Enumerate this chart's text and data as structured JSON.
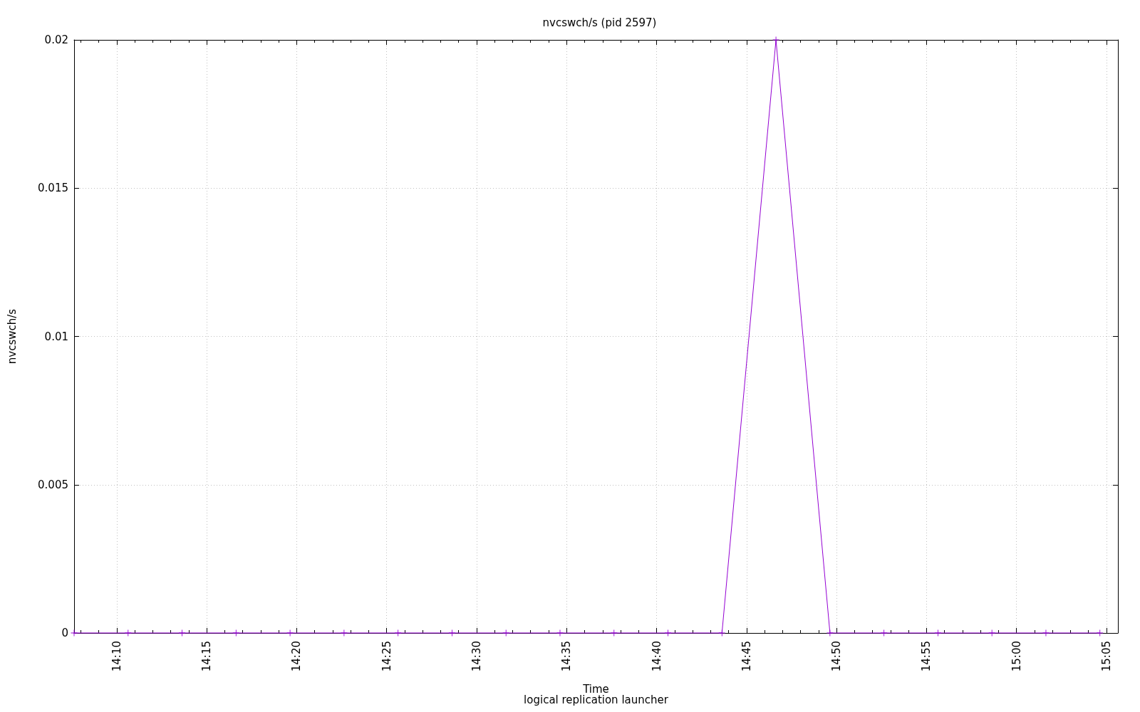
{
  "chart_data": {
    "type": "line",
    "title": "nvcswch/s (pid 2597)",
    "xlabel": "Time",
    "ylabel": "nvcswch/s",
    "annotations": [
      "logical replication launcher"
    ],
    "x": [
      14.12722,
      14.17722,
      14.22722,
      14.27722,
      14.32722,
      14.37722,
      14.42722,
      14.47722,
      14.52722,
      14.57722,
      14.62722,
      14.67722,
      14.72722,
      14.77722,
      14.82722,
      14.87722,
      14.92722,
      14.97722,
      15.02722,
      15.07722
    ],
    "series": [
      {
        "color": "#9400d3",
        "values": [
          0,
          0,
          0,
          0,
          0,
          0,
          0,
          0,
          0,
          0,
          0,
          0,
          0,
          0.02,
          0,
          0,
          0,
          0,
          0,
          0
        ]
      }
    ],
    "xlim": [
      14.12722,
      15.09389
    ],
    "xticks": [
      {
        "value": 14.13333,
        "label": null
      },
      {
        "value": 14.15,
        "label": null
      },
      {
        "value": 14.16667,
        "label": "14:10"
      },
      {
        "value": 14.18333,
        "label": null
      },
      {
        "value": 14.2,
        "label": null
      },
      {
        "value": 14.21667,
        "label": null
      },
      {
        "value": 14.23333,
        "label": null
      },
      {
        "value": 14.25,
        "label": "14:15"
      },
      {
        "value": 14.26667,
        "label": null
      },
      {
        "value": 14.28333,
        "label": null
      },
      {
        "value": 14.3,
        "label": null
      },
      {
        "value": 14.31667,
        "label": null
      },
      {
        "value": 14.33333,
        "label": "14:20"
      },
      {
        "value": 14.35,
        "label": null
      },
      {
        "value": 14.36667,
        "label": null
      },
      {
        "value": 14.38333,
        "label": null
      },
      {
        "value": 14.4,
        "label": null
      },
      {
        "value": 14.41667,
        "label": "14:25"
      },
      {
        "value": 14.43333,
        "label": null
      },
      {
        "value": 14.45,
        "label": null
      },
      {
        "value": 14.46667,
        "label": null
      },
      {
        "value": 14.48333,
        "label": null
      },
      {
        "value": 14.5,
        "label": "14:30"
      },
      {
        "value": 14.51667,
        "label": null
      },
      {
        "value": 14.53333,
        "label": null
      },
      {
        "value": 14.55,
        "label": null
      },
      {
        "value": 14.56667,
        "label": null
      },
      {
        "value": 14.58333,
        "label": "14:35"
      },
      {
        "value": 14.6,
        "label": null
      },
      {
        "value": 14.61667,
        "label": null
      },
      {
        "value": 14.63333,
        "label": null
      },
      {
        "value": 14.65,
        "label": null
      },
      {
        "value": 14.66667,
        "label": "14:40"
      },
      {
        "value": 14.68333,
        "label": null
      },
      {
        "value": 14.7,
        "label": null
      },
      {
        "value": 14.71667,
        "label": null
      },
      {
        "value": 14.73333,
        "label": null
      },
      {
        "value": 14.75,
        "label": "14:45"
      },
      {
        "value": 14.76667,
        "label": null
      },
      {
        "value": 14.78333,
        "label": null
      },
      {
        "value": 14.8,
        "label": null
      },
      {
        "value": 14.81667,
        "label": null
      },
      {
        "value": 14.83333,
        "label": "14:50"
      },
      {
        "value": 14.85,
        "label": null
      },
      {
        "value": 14.86667,
        "label": null
      },
      {
        "value": 14.88333,
        "label": null
      },
      {
        "value": 14.9,
        "label": null
      },
      {
        "value": 14.91667,
        "label": "14:55"
      },
      {
        "value": 14.93333,
        "label": null
      },
      {
        "value": 14.95,
        "label": null
      },
      {
        "value": 14.96667,
        "label": null
      },
      {
        "value": 14.98333,
        "label": null
      },
      {
        "value": 15.0,
        "label": "15:00"
      },
      {
        "value": 15.01667,
        "label": null
      },
      {
        "value": 15.03333,
        "label": null
      },
      {
        "value": 15.05,
        "label": null
      },
      {
        "value": 15.06667,
        "label": null
      },
      {
        "value": 15.08333,
        "label": "15:05"
      }
    ],
    "ylim": [
      0,
      0.02
    ],
    "yticks": [
      0,
      0.005,
      0.01,
      0.015,
      0.02
    ],
    "grid": true,
    "marker": "cross",
    "line_style": "solid"
  }
}
